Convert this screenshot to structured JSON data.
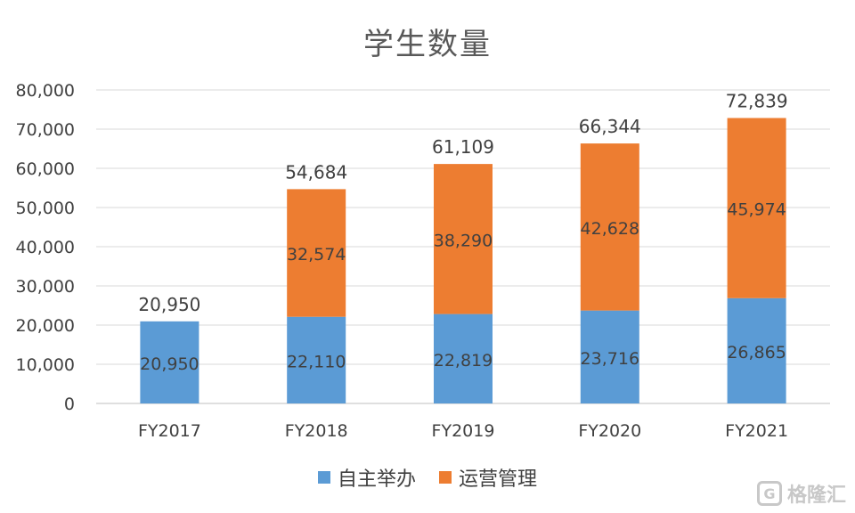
{
  "chart_data": {
    "type": "bar",
    "stacked": true,
    "title": "学生数量",
    "categories": [
      "FY2017",
      "FY2018",
      "FY2019",
      "FY2020",
      "FY2021"
    ],
    "series": [
      {
        "name": "自主举办",
        "color": "#5B9BD5",
        "values": [
          20950,
          22110,
          22819,
          23716,
          26865
        ],
        "labels": [
          "20,950",
          "22,110",
          "22,819",
          "23,716",
          "26,865"
        ]
      },
      {
        "name": "运营管理",
        "color": "#ED7D31",
        "values": [
          0,
          32574,
          38290,
          42628,
          45974
        ],
        "labels": [
          "",
          "32,574",
          "38,290",
          "42,628",
          "45,974"
        ]
      }
    ],
    "totals": [
      20950,
      54684,
      61109,
      66344,
      72839
    ],
    "total_labels": [
      "20,950",
      "54,684",
      "61,109",
      "66,344",
      "72,839"
    ],
    "yticks": [
      "0",
      "10,000",
      "20,000",
      "30,000",
      "40,000",
      "50,000",
      "60,000",
      "70,000",
      "80,000"
    ],
    "ylim": [
      0,
      80000
    ],
    "grid": true,
    "legend": "bottom"
  },
  "watermark": {
    "text": "格隆汇",
    "logo": "G"
  }
}
